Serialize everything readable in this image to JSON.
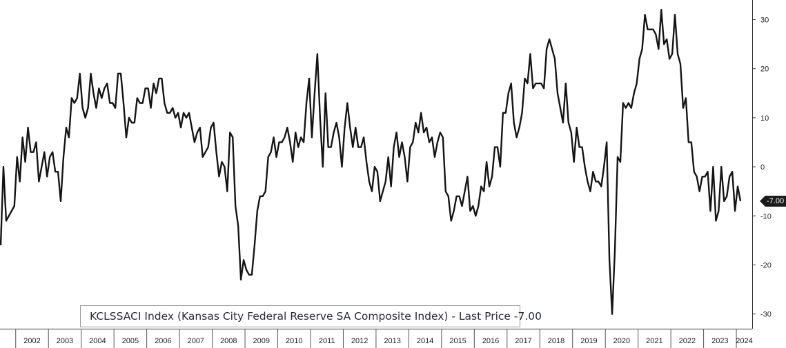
{
  "chart_data": {
    "type": "line",
    "series": [
      {
        "name": "KCLSSACI Index (Kansas City Federal Reserve SA Composite Index)",
        "start": "2001-07",
        "frequency": "monthly",
        "values": [
          -16,
          0,
          -11,
          -10,
          -9,
          -8,
          2,
          -3,
          6,
          1,
          8,
          3,
          3,
          5,
          -3,
          0,
          3,
          -2,
          2,
          3,
          -1,
          -1,
          -7,
          2,
          8,
          6,
          14,
          13,
          14,
          19,
          12,
          10,
          12,
          19,
          15,
          12,
          16,
          14,
          16,
          17,
          13,
          13,
          12,
          19,
          19,
          13,
          6,
          10,
          9,
          9,
          14,
          13,
          13,
          16,
          16,
          12,
          17,
          15,
          18,
          18,
          13,
          11,
          11,
          12,
          10,
          11,
          8,
          11,
          10,
          11,
          8,
          5,
          7,
          8,
          2,
          3,
          4,
          8,
          9,
          3,
          -2,
          1,
          0,
          -5,
          7,
          6,
          -8,
          -12,
          -23,
          -19,
          -21,
          -22,
          -22,
          -16,
          -9,
          -6,
          -6,
          -5,
          2,
          3,
          6,
          2,
          5,
          5,
          6,
          8,
          5,
          1,
          7,
          4,
          6,
          5,
          13,
          18,
          6,
          15,
          23,
          10,
          0,
          15,
          4,
          4,
          7,
          9,
          6,
          0,
          8,
          13,
          8,
          4,
          8,
          4,
          4,
          6,
          1,
          -3,
          -5,
          0,
          -1,
          -7,
          -5,
          -3,
          2,
          -4,
          4,
          7,
          2,
          5,
          2,
          -3,
          4,
          5,
          9,
          7,
          11,
          7,
          8,
          5,
          6,
          2,
          5,
          7,
          6,
          -5,
          -6,
          -11,
          -9,
          -6,
          -6,
          -8,
          -5,
          -2,
          -9,
          -8,
          -10,
          -8,
          -4,
          -5,
          1,
          -4,
          -2,
          4,
          4,
          0,
          11,
          11,
          15,
          17,
          9,
          6,
          8,
          11,
          18,
          17,
          23,
          16,
          17,
          17,
          17,
          16,
          24,
          26,
          24,
          22,
          15,
          12,
          9,
          17,
          9,
          7,
          1,
          8,
          4,
          4,
          0,
          -3,
          -5,
          -1,
          -3,
          -3,
          -4,
          0,
          5,
          -19,
          -30,
          -17,
          2,
          1,
          13,
          12,
          13,
          12,
          15,
          17,
          22,
          24,
          31,
          28,
          28,
          28,
          27,
          24,
          32,
          25,
          26,
          22,
          23,
          31,
          23,
          21,
          12,
          14,
          5,
          5,
          -1,
          -2,
          -5,
          -2,
          -2,
          -1,
          -9,
          0,
          -11,
          -9,
          0,
          -7,
          -6,
          -2,
          -1,
          -9,
          -4,
          -7
        ]
      }
    ],
    "x_ticks": [
      "2002",
      "2003",
      "2004",
      "2005",
      "2006",
      "2007",
      "2008",
      "2009",
      "2010",
      "2011",
      "2012",
      "2013",
      "2014",
      "2015",
      "2016",
      "2017",
      "2018",
      "2019",
      "2020",
      "2021",
      "2022",
      "2023",
      "2024"
    ],
    "y_ticks": [
      "30",
      "20",
      "10",
      "0",
      "-10",
      "-20",
      "-30"
    ],
    "ylim": [
      -33,
      34
    ],
    "y_axis_side": "right",
    "grid": false,
    "legend": {
      "position": "bottom-left",
      "text": "KCLSSACI Index (Kansas City Federal Reserve SA Composite Index) - Last Price -7.00"
    },
    "last_value_label": "-7.00",
    "last_value": -7.0
  }
}
